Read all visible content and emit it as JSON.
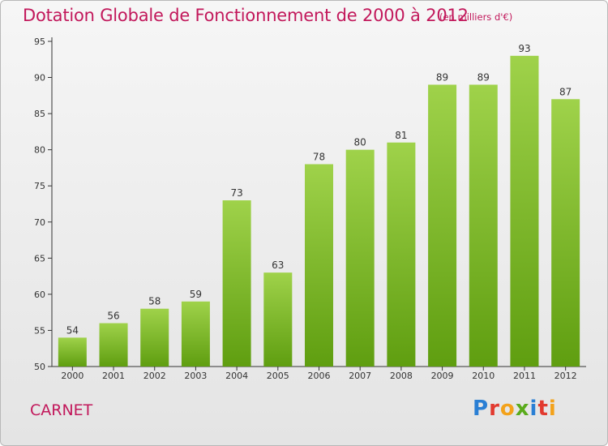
{
  "chart_data": {
    "type": "bar",
    "title": "Dotation Globale de Fonctionnement de 2000 à 2012",
    "subtitle": "(en milliers d'€)",
    "categories": [
      "2000",
      "2001",
      "2002",
      "2003",
      "2004",
      "2005",
      "2006",
      "2007",
      "2008",
      "2009",
      "2010",
      "2011",
      "2012"
    ],
    "values": [
      54,
      56,
      58,
      59,
      73,
      63,
      78,
      80,
      81,
      89,
      89,
      93,
      87
    ],
    "ylim": [
      50,
      95
    ],
    "yticks": [
      50,
      55,
      60,
      65,
      70,
      75,
      80,
      85,
      90,
      95
    ],
    "xlabel": "",
    "ylabel": "",
    "grid": false,
    "bar_color_top": "#9fd24a",
    "bar_color_bottom": "#5f9e10"
  },
  "footer": {
    "commune": "CARNET",
    "logo_letters": [
      {
        "ch": "P",
        "color": "#2a7fd4"
      },
      {
        "ch": "r",
        "color": "#e23a2f"
      },
      {
        "ch": "o",
        "color": "#f3a21b"
      },
      {
        "ch": "x",
        "color": "#5aab1c"
      },
      {
        "ch": "i",
        "color": "#2a7fd4"
      },
      {
        "ch": "t",
        "color": "#e23a2f"
      },
      {
        "ch": "i",
        "color": "#f3a21b"
      }
    ]
  },
  "colors": {
    "title": "#c2185b",
    "axis": "#333333"
  }
}
